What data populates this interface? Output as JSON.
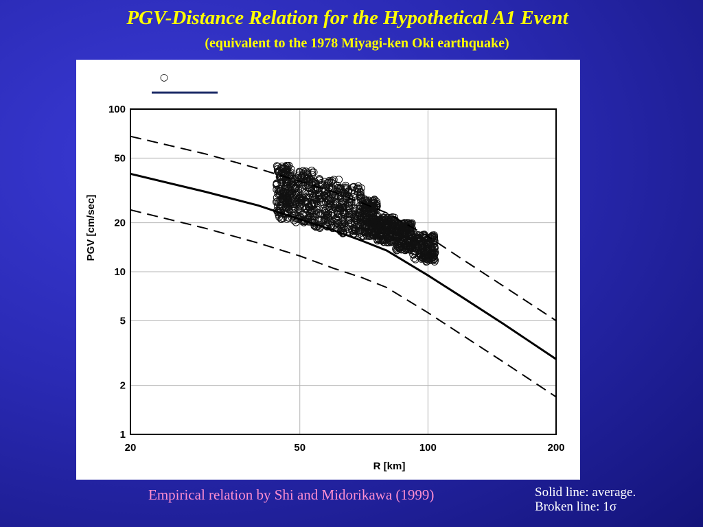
{
  "slide": {
    "title": "PGV-Distance Relation for the Hypothetical A1 Event",
    "subtitle": "(equivalent to the 1978 Miyagi-ken Oki earthquake)",
    "caption": "Empirical relation by Shi and Midorikawa (1999)",
    "note_solid": "Solid line: average.",
    "note_broken": "Broken line: 1σ",
    "title_color": "#ffff00",
    "caption_color": "#ff8fd0"
  },
  "chart_data": {
    "type": "scatter",
    "xlabel": "R [km]",
    "ylabel": "PGV [cm/sec]",
    "xscale": "log",
    "yscale": "log",
    "xlim": [
      20,
      200
    ],
    "ylim": [
      1,
      100
    ],
    "xticks": [
      20,
      50,
      100,
      200
    ],
    "yticks": [
      1,
      2,
      5,
      10,
      20,
      50,
      100
    ],
    "grid": true,
    "legend_symbol": "○",
    "series": [
      {
        "style": "solid",
        "x": [
          20,
          30,
          40,
          50,
          60,
          70,
          80,
          100,
          120,
          150,
          200
        ],
        "y": [
          40,
          31,
          25.5,
          21,
          18,
          15.5,
          13.5,
          9.5,
          7,
          4.8,
          2.9
        ]
      },
      {
        "style": "dashed",
        "x": [
          20,
          30,
          40,
          50,
          60,
          70,
          80,
          100,
          120,
          150,
          200
        ],
        "y": [
          68,
          53,
          43,
          36,
          31,
          26.5,
          23,
          16.5,
          12,
          8.2,
          5
        ]
      },
      {
        "style": "dashed",
        "x": [
          20,
          30,
          40,
          50,
          60,
          70,
          80,
          100,
          120,
          150,
          200
        ],
        "y": [
          24,
          18.5,
          15,
          12.5,
          10.5,
          9.2,
          8,
          5.6,
          4.1,
          2.8,
          1.7
        ]
      }
    ],
    "scatter_bands": [
      {
        "x0": 44,
        "x1": 48,
        "ylo": 21,
        "yhi": 45
      },
      {
        "x0": 48,
        "x1": 54,
        "ylo": 20,
        "yhi": 42
      },
      {
        "x0": 54,
        "x1": 62,
        "ylo": 18.5,
        "yhi": 38
      },
      {
        "x0": 62,
        "x1": 70,
        "ylo": 17,
        "yhi": 34
      },
      {
        "x0": 70,
        "x1": 76,
        "ylo": 16.5,
        "yhi": 28
      },
      {
        "x0": 76,
        "x1": 84,
        "ylo": 15,
        "yhi": 22
      },
      {
        "x0": 84,
        "x1": 92,
        "ylo": 13.5,
        "yhi": 20
      },
      {
        "x0": 92,
        "x1": 104,
        "ylo": 11.5,
        "yhi": 17
      }
    ]
  }
}
